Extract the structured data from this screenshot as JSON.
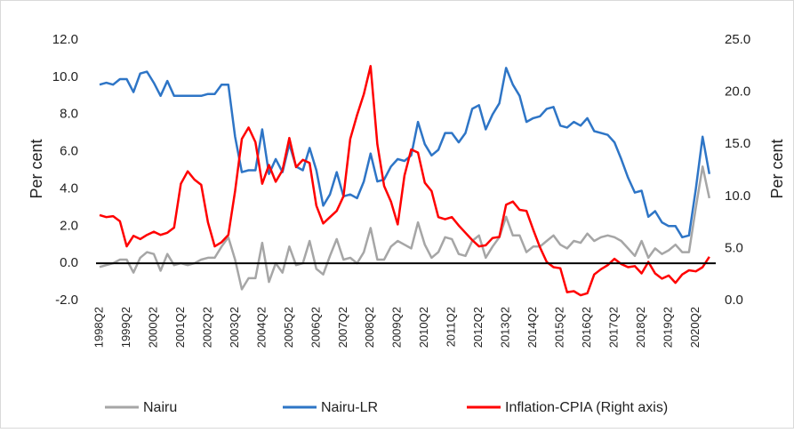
{
  "chart_data": {
    "type": "line",
    "categories": [
      "1998Q2",
      null,
      null,
      null,
      "1999Q2",
      null,
      null,
      null,
      "2000Q2",
      null,
      null,
      null,
      "2001Q2",
      null,
      null,
      null,
      "2002Q2",
      null,
      null,
      null,
      "2003Q2",
      null,
      null,
      null,
      "2004Q2",
      null,
      null,
      null,
      "2005Q2",
      null,
      null,
      null,
      "2006Q2",
      null,
      null,
      null,
      "2007Q2",
      null,
      null,
      null,
      "2008Q2",
      null,
      null,
      null,
      "2009Q2",
      null,
      null,
      null,
      "2010Q2",
      null,
      null,
      null,
      "2011Q2",
      null,
      null,
      null,
      "2012Q2",
      null,
      null,
      null,
      "2013Q2",
      null,
      null,
      null,
      "2014Q2",
      null,
      null,
      null,
      "2015Q2",
      null,
      null,
      null,
      "2016Q2",
      null,
      null,
      null,
      "2017Q2",
      null,
      null,
      null,
      "2018Q2",
      null,
      null,
      null,
      "2019Q2",
      null,
      null,
      null,
      "2020Q2",
      null,
      null
    ],
    "y_label": "Per cent",
    "y2_label": "Per cent",
    "ylim": [
      -2,
      12
    ],
    "yticks": [
      {
        "value": -2,
        "label": "-2.0"
      },
      {
        "value": 0,
        "label": "0.0"
      },
      {
        "value": 2,
        "label": "2.0"
      },
      {
        "value": 4,
        "label": "4.0"
      },
      {
        "value": 6,
        "label": "6.0"
      },
      {
        "value": 8,
        "label": "8.0"
      },
      {
        "value": 10,
        "label": "10.0"
      },
      {
        "value": 12,
        "label": "12.0"
      }
    ],
    "y2lim": [
      0,
      25
    ],
    "y2ticks": [
      {
        "value": 0,
        "label": "0.0"
      },
      {
        "value": 5,
        "label": "5.0"
      },
      {
        "value": 10,
        "label": "10.0"
      },
      {
        "value": 15,
        "label": "15.0"
      },
      {
        "value": 20,
        "label": "20.0"
      },
      {
        "value": 25,
        "label": "25.0"
      }
    ],
    "zero_line": true,
    "series": [
      {
        "name": "Nairu",
        "color": "#a6a6a6",
        "values": [
          -0.2,
          -0.1,
          0.0,
          0.2,
          0.2,
          -0.5,
          0.3,
          0.6,
          0.5,
          -0.4,
          0.5,
          -0.1,
          0.0,
          -0.1,
          0.0,
          0.2,
          0.3,
          0.3,
          0.9,
          1.4,
          0.2,
          -1.4,
          -0.8,
          -0.8,
          1.1,
          -1.0,
          0.0,
          -0.5,
          0.9,
          -0.1,
          0.0,
          1.2,
          -0.3,
          -0.6,
          0.4,
          1.3,
          0.2,
          0.3,
          0.0,
          0.6,
          1.9,
          0.2,
          0.2,
          0.9,
          1.2,
          1.0,
          0.8,
          2.2,
          1.0,
          0.3,
          0.6,
          1.4,
          1.3,
          0.5,
          0.4,
          1.2,
          1.5,
          0.3,
          0.9,
          1.4,
          2.5,
          1.5,
          1.5,
          0.6,
          0.9,
          0.9,
          1.2,
          1.5,
          1.0,
          0.8,
          1.2,
          1.1,
          1.6,
          1.2,
          1.4,
          1.5,
          1.4,
          1.2,
          0.8,
          0.4,
          1.2,
          0.3,
          0.8,
          0.5,
          0.7,
          1.0,
          0.6,
          0.6,
          3.0,
          5.2,
          3.5
        ]
      },
      {
        "name": "Nairu-LR",
        "color": "#2e75c6",
        "values": [
          9.6,
          9.7,
          9.6,
          9.9,
          9.9,
          9.2,
          10.2,
          10.3,
          9.7,
          9.0,
          9.8,
          9.0,
          9.0,
          9.0,
          9.0,
          9.0,
          9.1,
          9.1,
          9.6,
          9.6,
          6.8,
          4.9,
          5.0,
          5.0,
          7.2,
          4.8,
          5.6,
          4.9,
          6.4,
          5.2,
          5.0,
          6.2,
          5.0,
          3.1,
          3.7,
          4.9,
          3.6,
          3.7,
          3.5,
          4.4,
          5.9,
          4.4,
          4.5,
          5.2,
          5.6,
          5.5,
          5.8,
          7.6,
          6.4,
          5.8,
          6.1,
          7.0,
          7.0,
          6.5,
          7.0,
          8.3,
          8.5,
          7.2,
          8.0,
          8.6,
          10.5,
          9.6,
          9.0,
          7.6,
          7.8,
          7.9,
          8.3,
          8.4,
          7.4,
          7.3,
          7.6,
          7.4,
          7.8,
          7.1,
          7.0,
          6.9,
          6.5,
          5.6,
          4.6,
          3.8,
          3.9,
          2.5,
          2.8,
          2.2,
          2.0,
          2.0,
          1.4,
          1.5,
          4.0,
          6.8,
          4.8
        ]
      },
      {
        "name": "Inflation-CPIA (Right axis)",
        "color": "#ff0000",
        "axis": "y2",
        "values": [
          8.2,
          8.0,
          8.1,
          7.6,
          5.2,
          6.2,
          5.9,
          6.3,
          6.6,
          6.3,
          6.5,
          7.0,
          11.2,
          12.4,
          11.6,
          11.1,
          7.5,
          5.2,
          5.6,
          6.3,
          10.5,
          15.5,
          16.6,
          15.2,
          11.2,
          13.0,
          11.4,
          12.5,
          15.6,
          12.8,
          13.5,
          13.2,
          9.1,
          7.4,
          8.0,
          8.6,
          10.0,
          15.5,
          17.8,
          19.8,
          22.5,
          15.0,
          11.0,
          9.5,
          7.3,
          12.0,
          14.5,
          14.2,
          11.3,
          10.5,
          8.0,
          7.8,
          8.0,
          7.2,
          6.5,
          5.8,
          5.2,
          5.3,
          6.0,
          6.1,
          9.2,
          9.5,
          8.7,
          8.6,
          6.8,
          5.1,
          3.7,
          3.2,
          3.1,
          0.8,
          0.9,
          0.5,
          0.7,
          2.5,
          3.0,
          3.4,
          4.0,
          3.5,
          3.2,
          3.3,
          2.6,
          3.7,
          2.6,
          2.1,
          2.4,
          1.7,
          2.5,
          2.9,
          2.8,
          3.2,
          4.2
        ]
      }
    ]
  }
}
